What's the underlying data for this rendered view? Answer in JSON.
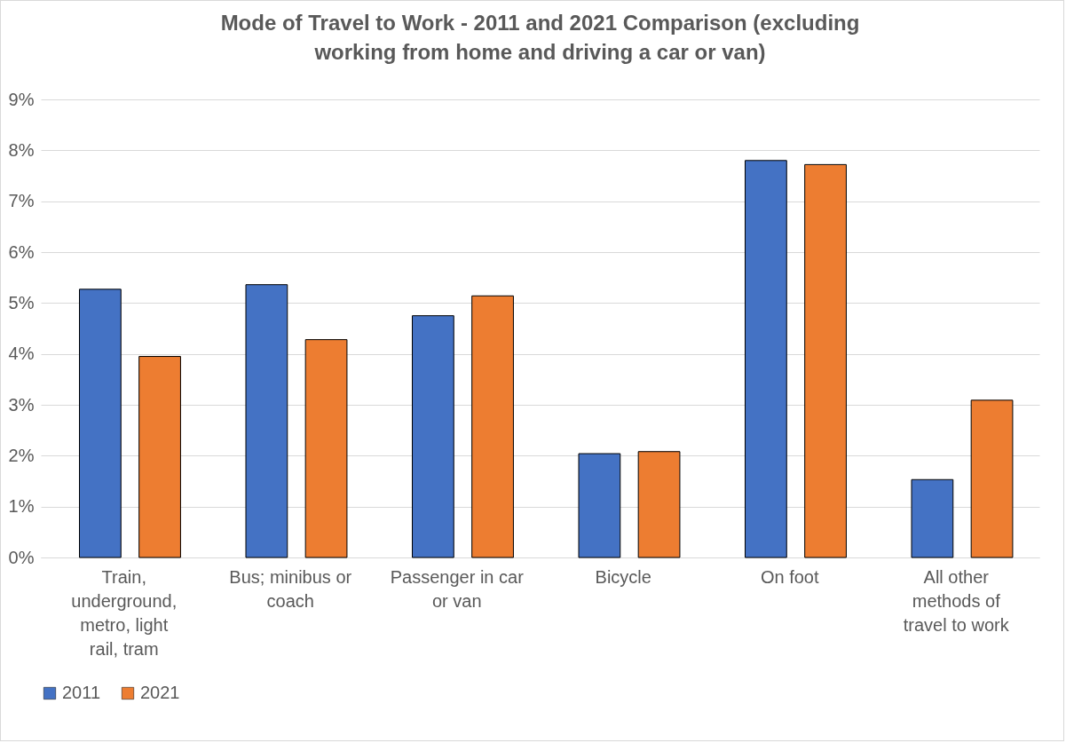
{
  "chart_data": {
    "type": "bar",
    "title": "Mode of Travel to Work - 2011 and 2021 Comparison (excluding working from home and driving a car or van)",
    "categories": [
      "Train, underground, metro, light rail, tram",
      "Bus; minibus or coach",
      "Passenger in car or van",
      "Bicycle",
      "On foot",
      "All other methods of travel to work"
    ],
    "series": [
      {
        "name": "2011",
        "color": "#4472c4",
        "values": [
          5.27,
          5.36,
          4.75,
          2.04,
          7.8,
          1.53
        ]
      },
      {
        "name": "2021",
        "color": "#ed7d31",
        "values": [
          3.95,
          4.28,
          5.14,
          2.08,
          7.72,
          3.09
        ]
      }
    ],
    "ylim": [
      0,
      9
    ],
    "yticks": [
      {
        "value": 0,
        "label": "0%"
      },
      {
        "value": 1,
        "label": "1%"
      },
      {
        "value": 2,
        "label": "2%"
      },
      {
        "value": 3,
        "label": "3%"
      },
      {
        "value": 4,
        "label": "4%"
      },
      {
        "value": 5,
        "label": "5%"
      },
      {
        "value": 6,
        "label": "6%"
      },
      {
        "value": 7,
        "label": "7%"
      },
      {
        "value": 8,
        "label": "8%"
      },
      {
        "value": 9,
        "label": "9%"
      }
    ],
    "grid": "y",
    "legend": "bottom"
  }
}
